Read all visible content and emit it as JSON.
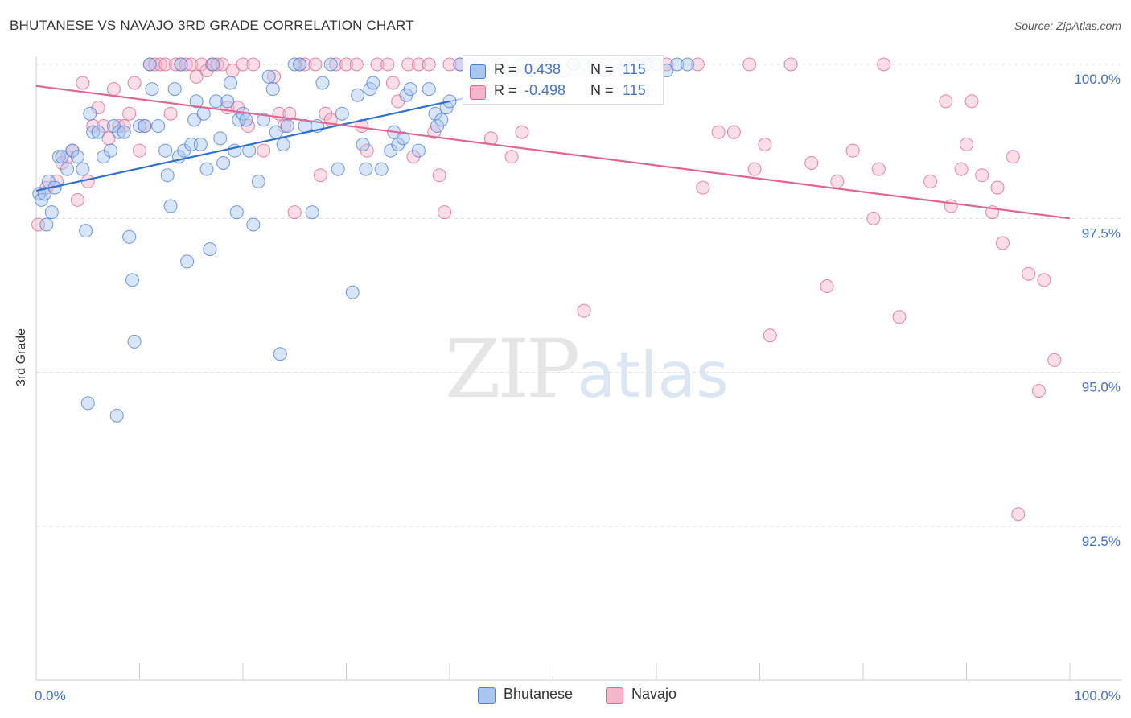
{
  "title": "BHUTANESE VS NAVAJO 3RD GRADE CORRELATION CHART",
  "source": "Source: ZipAtlas.com",
  "watermark": {
    "zip": "ZIP",
    "atlas": "atlas"
  },
  "colors": {
    "blue": "#4a7fd4",
    "blue_fill": "#a9c6f0",
    "pink": "#e0668f",
    "pink_fill": "#f4b6c9",
    "tick": "#4472c4"
  },
  "legend": {
    "rows": [
      {
        "r_label": "R =",
        "r_value": "0.438",
        "n_label": "N =",
        "n_value": "115"
      },
      {
        "r_label": "R =",
        "r_value": "-0.498",
        "n_label": "N =",
        "n_value": "115"
      }
    ]
  },
  "bottom_legend": [
    "Bhutanese",
    "Navajo"
  ],
  "chart_data": {
    "type": "scatter",
    "title": "BHUTANESE VS NAVAJO 3RD GRADE CORRELATION CHART",
    "xlabel": "",
    "ylabel": "3rd Grade",
    "xlim": [
      0,
      100
    ],
    "ylim": [
      90.3,
      100.4
    ],
    "x_tick_labels": [
      "0.0%",
      "100.0%"
    ],
    "y_ticks": [
      100.0,
      97.5,
      95.0,
      92.5
    ],
    "y_tick_labels": [
      "100.0%",
      "97.5%",
      "95.0%",
      "92.5%"
    ],
    "grid": true,
    "legend_position": "top-center",
    "series": [
      {
        "name": "Bhutanese",
        "r": 0.438,
        "n": 115,
        "trend": {
          "x": [
            0,
            40
          ],
          "y": [
            97.95,
            99.4
          ]
        },
        "points": [
          [
            0.3,
            97.9
          ],
          [
            0.5,
            97.8
          ],
          [
            0.8,
            97.9
          ],
          [
            1.0,
            97.4
          ],
          [
            1.2,
            98.1
          ],
          [
            1.5,
            97.6
          ],
          [
            1.8,
            98.0
          ],
          [
            2.2,
            98.5
          ],
          [
            2.5,
            98.5
          ],
          [
            3.0,
            98.3
          ],
          [
            3.5,
            98.6
          ],
          [
            4.0,
            98.5
          ],
          [
            4.5,
            98.3
          ],
          [
            4.8,
            97.3
          ],
          [
            5.2,
            99.2
          ],
          [
            5.5,
            98.9
          ],
          [
            6.0,
            98.9
          ],
          [
            6.5,
            98.5
          ],
          [
            7.2,
            98.6
          ],
          [
            7.5,
            99.0
          ],
          [
            8.0,
            98.9
          ],
          [
            8.5,
            98.9
          ],
          [
            9.0,
            97.2
          ],
          [
            9.5,
            95.5
          ],
          [
            10.0,
            99.0
          ],
          [
            10.5,
            99.0
          ],
          [
            11.0,
            100.0
          ],
          [
            11.2,
            99.6
          ],
          [
            11.8,
            99.0
          ],
          [
            12.5,
            98.6
          ],
          [
            12.7,
            98.2
          ],
          [
            13.0,
            97.7
          ],
          [
            13.4,
            99.6
          ],
          [
            13.8,
            98.5
          ],
          [
            14.0,
            100.0
          ],
          [
            14.3,
            98.6
          ],
          [
            14.6,
            96.8
          ],
          [
            15.0,
            98.7
          ],
          [
            15.3,
            99.1
          ],
          [
            15.5,
            99.4
          ],
          [
            15.9,
            98.7
          ],
          [
            16.2,
            99.2
          ],
          [
            16.5,
            98.3
          ],
          [
            16.8,
            97.0
          ],
          [
            17.1,
            100.0
          ],
          [
            17.4,
            99.4
          ],
          [
            17.8,
            98.8
          ],
          [
            18.1,
            98.4
          ],
          [
            18.5,
            99.4
          ],
          [
            18.8,
            99.7
          ],
          [
            19.2,
            98.6
          ],
          [
            19.4,
            97.6
          ],
          [
            19.6,
            99.1
          ],
          [
            20.0,
            99.2
          ],
          [
            20.3,
            99.1
          ],
          [
            20.6,
            98.6
          ],
          [
            21.0,
            97.4
          ],
          [
            21.5,
            98.1
          ],
          [
            22.0,
            99.1
          ],
          [
            22.5,
            99.8
          ],
          [
            22.9,
            99.6
          ],
          [
            23.2,
            98.9
          ],
          [
            23.6,
            95.3
          ],
          [
            23.9,
            98.7
          ],
          [
            24.3,
            99.0
          ],
          [
            25.0,
            100.0
          ],
          [
            25.5,
            100.0
          ],
          [
            26.0,
            99.0
          ],
          [
            26.7,
            97.6
          ],
          [
            27.2,
            99.0
          ],
          [
            27.7,
            99.7
          ],
          [
            28.5,
            100.0
          ],
          [
            29.2,
            98.3
          ],
          [
            29.6,
            99.2
          ],
          [
            30.6,
            96.3
          ],
          [
            31.1,
            99.5
          ],
          [
            31.6,
            98.7
          ],
          [
            31.9,
            98.3
          ],
          [
            32.3,
            99.6
          ],
          [
            32.6,
            99.7
          ],
          [
            33.4,
            98.3
          ],
          [
            34.3,
            98.6
          ],
          [
            34.6,
            98.9
          ],
          [
            35.0,
            98.7
          ],
          [
            35.5,
            98.8
          ],
          [
            35.8,
            99.5
          ],
          [
            36.2,
            99.6
          ],
          [
            37.0,
            98.6
          ],
          [
            38.0,
            99.6
          ],
          [
            38.6,
            99.2
          ],
          [
            38.8,
            99.0
          ],
          [
            39.2,
            99.1
          ],
          [
            39.7,
            99.3
          ],
          [
            40.0,
            99.4
          ],
          [
            41.0,
            100.0
          ],
          [
            42.0,
            100.0
          ],
          [
            43.0,
            99.9
          ],
          [
            44.0,
            100.0
          ],
          [
            45.0,
            100.0
          ],
          [
            46.0,
            99.9
          ],
          [
            47.0,
            100.0
          ],
          [
            48.0,
            99.9
          ],
          [
            49.0,
            100.0
          ],
          [
            50.0,
            100.0
          ],
          [
            51.0,
            99.9
          ],
          [
            52.0,
            100.0
          ],
          [
            53.0,
            100.0
          ],
          [
            54.0,
            100.0
          ],
          [
            55.0,
            99.9
          ],
          [
            56.0,
            100.0
          ],
          [
            57.0,
            99.9
          ],
          [
            58.0,
            100.0
          ],
          [
            59.0,
            100.0
          ],
          [
            60.0,
            100.0
          ],
          [
            61.0,
            99.9
          ],
          [
            62.0,
            100.0
          ],
          [
            63.0,
            100.0
          ],
          [
            5.0,
            94.5
          ],
          [
            7.8,
            94.3
          ],
          [
            9.3,
            96.5
          ]
        ]
      },
      {
        "name": "Navajo",
        "r": -0.498,
        "n": 115,
        "trend": {
          "x": [
            0,
            100
          ],
          "y": [
            99.65,
            97.5
          ]
        },
        "points": [
          [
            0.2,
            97.4
          ],
          [
            1.0,
            98.0
          ],
          [
            2.0,
            98.1
          ],
          [
            2.5,
            98.4
          ],
          [
            3.0,
            98.5
          ],
          [
            3.5,
            98.6
          ],
          [
            4.0,
            97.8
          ],
          [
            4.5,
            99.7
          ],
          [
            5.0,
            98.1
          ],
          [
            5.5,
            99.0
          ],
          [
            6.0,
            99.3
          ],
          [
            6.5,
            99.0
          ],
          [
            7.0,
            98.8
          ],
          [
            7.5,
            99.6
          ],
          [
            8.0,
            99.0
          ],
          [
            8.5,
            99.0
          ],
          [
            9.0,
            99.2
          ],
          [
            9.5,
            99.7
          ],
          [
            10.0,
            98.6
          ],
          [
            10.5,
            99.0
          ],
          [
            11.0,
            100.0
          ],
          [
            11.5,
            100.0
          ],
          [
            12.0,
            100.0
          ],
          [
            12.5,
            100.0
          ],
          [
            13.0,
            99.2
          ],
          [
            13.5,
            100.0
          ],
          [
            14.0,
            100.0
          ],
          [
            14.5,
            100.0
          ],
          [
            15.0,
            100.0
          ],
          [
            15.5,
            99.8
          ],
          [
            16.0,
            100.0
          ],
          [
            16.5,
            99.9
          ],
          [
            17.0,
            100.0
          ],
          [
            17.5,
            100.0
          ],
          [
            18.0,
            100.0
          ],
          [
            18.5,
            99.3
          ],
          [
            19.0,
            99.9
          ],
          [
            19.5,
            99.3
          ],
          [
            20.0,
            100.0
          ],
          [
            20.5,
            99.0
          ],
          [
            21.0,
            100.0
          ],
          [
            22.0,
            98.6
          ],
          [
            23.0,
            99.8
          ],
          [
            23.5,
            99.2
          ],
          [
            24.0,
            99.0
          ],
          [
            24.5,
            99.2
          ],
          [
            25.0,
            97.6
          ],
          [
            25.5,
            100.0
          ],
          [
            26.0,
            100.0
          ],
          [
            27.0,
            100.0
          ],
          [
            27.5,
            98.2
          ],
          [
            28.0,
            99.2
          ],
          [
            28.5,
            99.1
          ],
          [
            29.0,
            100.0
          ],
          [
            30.0,
            100.0
          ],
          [
            31.0,
            100.0
          ],
          [
            31.5,
            99.0
          ],
          [
            32.0,
            98.6
          ],
          [
            33.0,
            100.0
          ],
          [
            34.0,
            100.0
          ],
          [
            34.5,
            99.7
          ],
          [
            35.0,
            99.4
          ],
          [
            36.0,
            100.0
          ],
          [
            36.5,
            98.5
          ],
          [
            37.0,
            100.0
          ],
          [
            38.0,
            100.0
          ],
          [
            38.5,
            98.9
          ],
          [
            39.0,
            98.2
          ],
          [
            39.5,
            97.6
          ],
          [
            40.0,
            100.0
          ],
          [
            41.0,
            100.0
          ],
          [
            42.0,
            100.0
          ],
          [
            43.0,
            100.0
          ],
          [
            44.0,
            98.8
          ],
          [
            45.0,
            100.0
          ],
          [
            46.0,
            98.5
          ],
          [
            47.0,
            98.9
          ],
          [
            48.0,
            100.0
          ],
          [
            49.0,
            100.0
          ],
          [
            50.0,
            100.0
          ],
          [
            52.0,
            100.0
          ],
          [
            53.0,
            96.0
          ],
          [
            55.0,
            100.0
          ],
          [
            57.0,
            100.0
          ],
          [
            59.0,
            100.0
          ],
          [
            60.0,
            100.0
          ],
          [
            61.0,
            100.0
          ],
          [
            64.0,
            100.0
          ],
          [
            64.5,
            98.0
          ],
          [
            66.0,
            98.9
          ],
          [
            67.5,
            98.9
          ],
          [
            69.0,
            100.0
          ],
          [
            69.5,
            98.3
          ],
          [
            70.5,
            98.7
          ],
          [
            71.0,
            95.6
          ],
          [
            73.0,
            100.0
          ],
          [
            75.0,
            98.4
          ],
          [
            76.5,
            96.4
          ],
          [
            77.5,
            98.1
          ],
          [
            79.0,
            98.6
          ],
          [
            81.0,
            97.5
          ],
          [
            81.5,
            98.3
          ],
          [
            82.0,
            100.0
          ],
          [
            83.5,
            95.9
          ],
          [
            86.5,
            98.1
          ],
          [
            88.5,
            97.7
          ],
          [
            88.0,
            99.4
          ],
          [
            89.5,
            98.3
          ],
          [
            90.5,
            99.4
          ],
          [
            90.0,
            98.7
          ],
          [
            91.5,
            98.2
          ],
          [
            92.5,
            97.6
          ],
          [
            93.0,
            98.0
          ],
          [
            93.5,
            97.1
          ],
          [
            94.5,
            98.5
          ],
          [
            95.0,
            92.7
          ],
          [
            96.0,
            96.6
          ],
          [
            97.0,
            94.7
          ],
          [
            97.5,
            96.5
          ],
          [
            98.5,
            95.2
          ]
        ]
      }
    ]
  }
}
